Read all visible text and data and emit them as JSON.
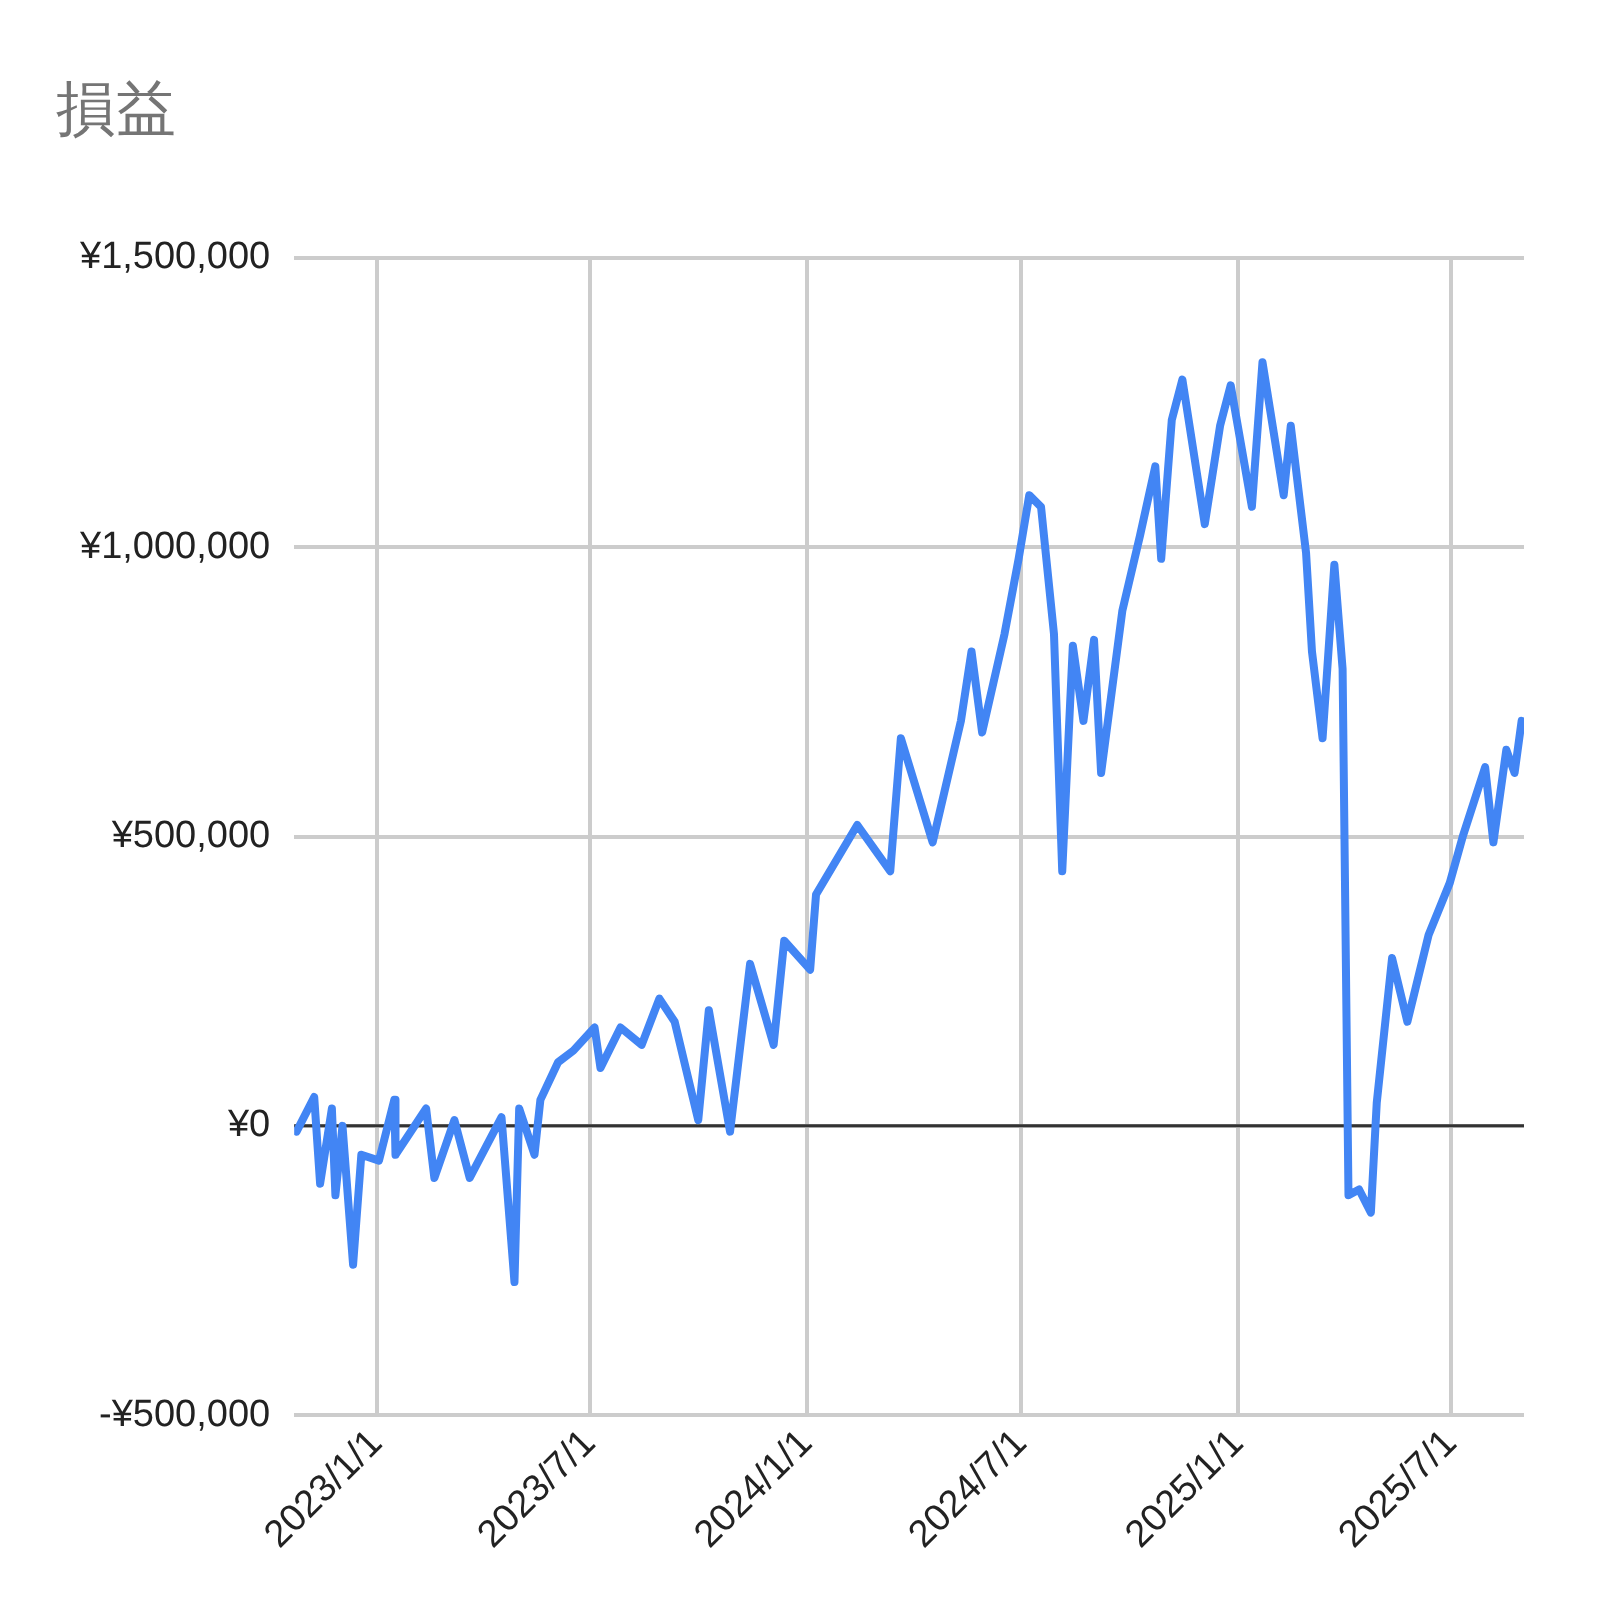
{
  "chart_data": {
    "type": "line",
    "title": "損益",
    "x": [
      "2022-10-25",
      "2022-11-09",
      "2022-11-14",
      "2022-11-24",
      "2022-11-27",
      "2022-12-03",
      "2022-12-12",
      "2022-12-19",
      "2023-01-03",
      "2023-01-16",
      "2023-01-17",
      "2023-02-12",
      "2023-02-19",
      "2023-03-08",
      "2023-03-21",
      "2023-04-17",
      "2023-04-28",
      "2023-05-02",
      "2023-05-15",
      "2023-05-20",
      "2023-06-04",
      "2023-06-17",
      "2023-07-05",
      "2023-07-10",
      "2023-07-27",
      "2023-08-14",
      "2023-08-29",
      "2023-09-11",
      "2023-10-01",
      "2023-10-10",
      "2023-10-28",
      "2023-11-14",
      "2023-12-04",
      "2023-12-13",
      "2024-01-04",
      "2024-01-09",
      "2024-02-13",
      "2024-03-12",
      "2024-03-21",
      "2024-04-17",
      "2024-05-11",
      "2024-05-20",
      "2024-05-29",
      "2024-06-17",
      "2024-06-29",
      "2024-07-08",
      "2024-07-18",
      "2024-07-29",
      "2024-08-05",
      "2024-08-14",
      "2024-08-23",
      "2024-09-01",
      "2024-09-07",
      "2024-09-25",
      "2024-10-10",
      "2024-10-23",
      "2024-10-28",
      "2024-11-06",
      "2024-11-15",
      "2024-12-04",
      "2024-12-17",
      "2024-12-26",
      "2025-01-13",
      "2025-01-22",
      "2025-02-09",
      "2025-02-15",
      "2025-02-28",
      "2025-03-05",
      "2025-03-14",
      "2025-03-24",
      "2025-03-31",
      "2025-04-05",
      "2025-04-14",
      "2025-04-24",
      "2025-04-29",
      "2025-05-12",
      "2025-05-25",
      "2025-06-12",
      "2025-06-30",
      "2025-07-11",
      "2025-07-30",
      "2025-08-06",
      "2025-08-17",
      "2025-08-24",
      "2025-08-30"
    ],
    "series": [
      {
        "color": "#4285f4",
        "values": [
          -10000,
          50000,
          -100000,
          30000,
          -120000,
          0,
          -240000,
          -50000,
          -60000,
          45000,
          -50000,
          30000,
          -90000,
          10000,
          -90000,
          15000,
          -270000,
          30000,
          -50000,
          45000,
          110000,
          130000,
          170000,
          100000,
          170000,
          140000,
          220000,
          180000,
          10000,
          200000,
          -10000,
          280000,
          140000,
          320000,
          270000,
          400000,
          520000,
          440000,
          670000,
          490000,
          700000,
          820000,
          680000,
          850000,
          980000,
          1090000,
          1070000,
          850000,
          440000,
          830000,
          700000,
          840000,
          610000,
          890000,
          1020000,
          1140000,
          980000,
          1220000,
          1290000,
          1040000,
          1210000,
          1280000,
          1070000,
          1320000,
          1090000,
          1210000,
          990000,
          820000,
          670000,
          970000,
          790000,
          -120000,
          -110000,
          -150000,
          40000,
          290000,
          180000,
          330000,
          420000,
          500000,
          620000,
          490000,
          650000,
          610000,
          700000
        ]
      }
    ],
    "xlim": [
      "2022-10-23",
      "2025-09-01"
    ],
    "xticks": [
      {
        "value": "2023-01-01",
        "label": "2023/1/1"
      },
      {
        "value": "2023-07-01",
        "label": "2023/7/1"
      },
      {
        "value": "2024-01-01",
        "label": "2024/1/1"
      },
      {
        "value": "2024-07-01",
        "label": "2024/7/1"
      },
      {
        "value": "2025-01-01",
        "label": "2025/1/1"
      },
      {
        "value": "2025-07-01",
        "label": "2025/7/1"
      }
    ],
    "ylim": [
      -500000,
      1500000
    ],
    "yticks": [
      {
        "value": -500000,
        "label": "-¥500,000"
      },
      {
        "value": 0,
        "label": "¥0"
      },
      {
        "value": 500000,
        "label": "¥500,000"
      },
      {
        "value": 1000000,
        "label": "¥1,000,000"
      },
      {
        "value": 1500000,
        "label": "¥1,500,000"
      }
    ],
    "ref_lines": [
      {
        "axis": "y",
        "value": 0,
        "color": "#333333"
      }
    ],
    "grid": true,
    "marker": "none",
    "line_style": "solid"
  }
}
